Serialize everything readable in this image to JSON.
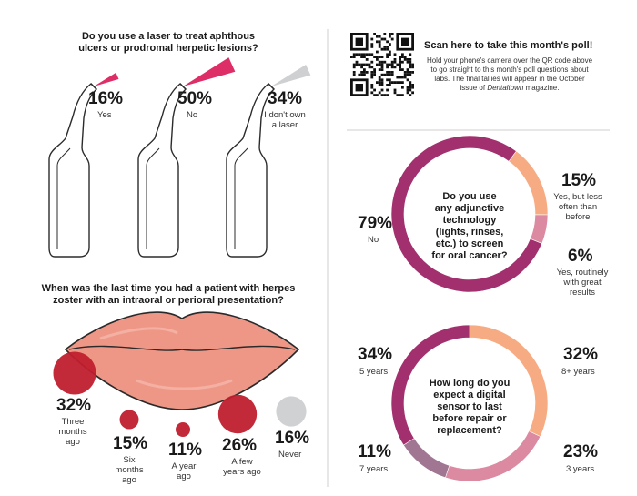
{
  "colors": {
    "pink": "#dd2e67",
    "gray": "#cfd0d2",
    "plum": "#a2306e",
    "peach": "#f7ab82",
    "rose": "#dc8aa2",
    "mauve": "#a07693",
    "red_dot": "#c01f2e",
    "lips": "#ee9787",
    "never_dot": "#d0d1d3"
  },
  "icons": {
    "qr": "qr-code-icon",
    "laser": "laser-handpiece-icon",
    "lips": "lips-icon"
  },
  "poll_promo": {
    "title": "Scan here to take this month's poll!",
    "body_1": "Hold your phone's camera over the QR code above",
    "body_2": "to go straight to this month's poll questions about",
    "body_3": "labs. The final tallies will appear in the October",
    "body_4a": "issue of ",
    "magazine": "Dentaltown",
    "body_4b": " magazine."
  },
  "chart_data": [
    {
      "type": "bar",
      "title": "Do you use a laser to treat aphthous ulcers or prodromal herpetic lesions?",
      "title_lines": [
        "Do you use a laser to treat aphthous",
        "ulcers or prodromal herpetic lesions?"
      ],
      "categories": [
        "Yes",
        "No",
        "I don't own a laser"
      ],
      "values": [
        16,
        50,
        34
      ],
      "value_labels": [
        "16%",
        "50%",
        "34%"
      ],
      "label_lines": [
        [
          "Yes"
        ],
        [
          "No"
        ],
        [
          "I don't own",
          "a laser"
        ]
      ]
    },
    {
      "type": "scatter",
      "title": "When was the last time you had a patient with herpes zoster with an intraoral or perioral presentation?",
      "title_lines": [
        "When was the last time you had a patient with herpes",
        "zoster with an intraoral or perioral presentation?"
      ],
      "categories": [
        "Three months ago",
        "Six months ago",
        "A year ago",
        "A few years ago",
        "Never"
      ],
      "values": [
        32,
        15,
        11,
        26,
        16
      ],
      "value_labels": [
        "32%",
        "15%",
        "11%",
        "26%",
        "16%"
      ],
      "label_lines": [
        [
          "Three",
          "months",
          "ago"
        ],
        [
          "Six",
          "months",
          "ago"
        ],
        [
          "A year",
          "ago"
        ],
        [
          "A few",
          "years ago"
        ],
        [
          "Never"
        ]
      ]
    },
    {
      "type": "pie",
      "title": "Do you use any adjunctive technology (lights, rinses, etc.) to screen for oral cancer?",
      "title_lines": [
        "Do you use",
        "any adjunctive",
        "technology",
        "(lights, rinses,",
        "etc.) to screen",
        "for oral cancer?"
      ],
      "categories": [
        "No",
        "Yes, but less often than before",
        "Yes, routinely with great results"
      ],
      "values": [
        79,
        15,
        6
      ],
      "value_labels": [
        "79%",
        "15%",
        "6%"
      ],
      "label_lines": [
        [
          "No"
        ],
        [
          "Yes, but less",
          "often than",
          "before"
        ],
        [
          "Yes, routinely",
          "with great",
          "results"
        ]
      ]
    },
    {
      "type": "pie",
      "title": "How long do you expect a digital sensor to last before repair or replacement?",
      "title_lines": [
        "How long do you",
        "expect a digital",
        "sensor to last",
        "before repair or",
        "replacement?"
      ],
      "categories": [
        "8+ years",
        "3 years",
        "7 years",
        "5 years"
      ],
      "values": [
        32,
        23,
        11,
        34
      ],
      "value_labels": [
        "32%",
        "23%",
        "11%",
        "34%"
      ],
      "label_lines": [
        [
          "8+ years"
        ],
        [
          "3 years"
        ],
        [
          "7 years"
        ],
        [
          "5 years"
        ]
      ]
    }
  ]
}
